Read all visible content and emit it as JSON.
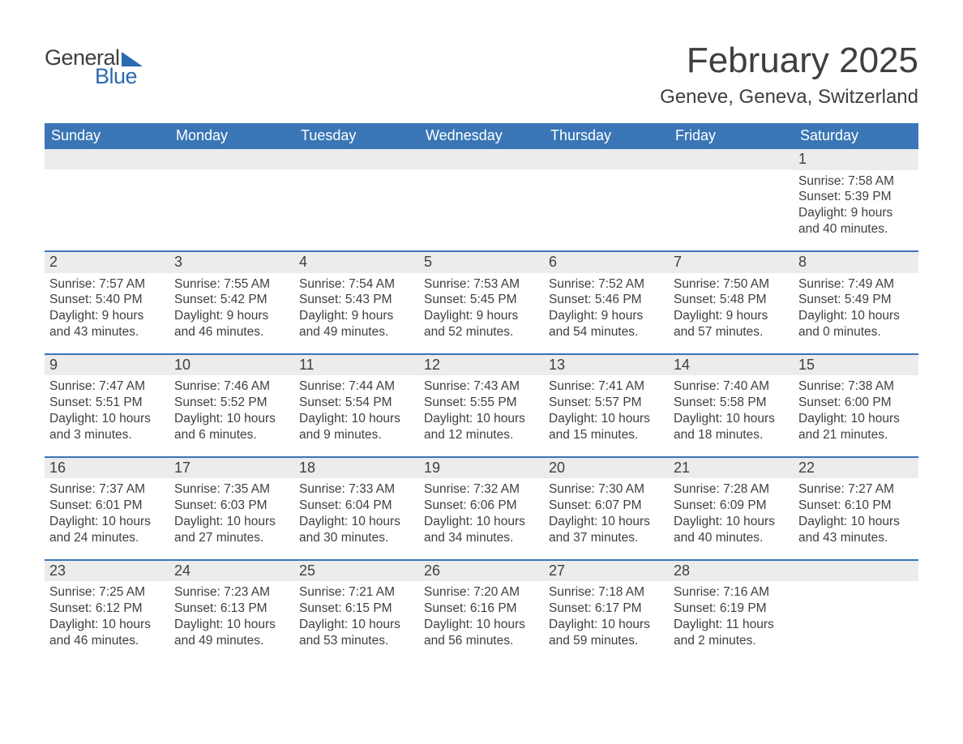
{
  "logo": {
    "word1": "General",
    "word2": "Blue"
  },
  "title": "February 2025",
  "location": "Geneve, Geneva, Switzerland",
  "header_bg": "#3a76b6",
  "row_bg": "#ececec",
  "text_color": "#3f3f3f",
  "accent_color": "#2b6bb0",
  "weekdays": [
    "Sunday",
    "Monday",
    "Tuesday",
    "Wednesday",
    "Thursday",
    "Friday",
    "Saturday"
  ],
  "weeks": [
    [
      null,
      null,
      null,
      null,
      null,
      null,
      {
        "n": "1",
        "sunrise": "Sunrise: 7:58 AM",
        "sunset": "Sunset: 5:39 PM",
        "day1": "Daylight: 9 hours",
        "day2": "and 40 minutes."
      }
    ],
    [
      {
        "n": "2",
        "sunrise": "Sunrise: 7:57 AM",
        "sunset": "Sunset: 5:40 PM",
        "day1": "Daylight: 9 hours",
        "day2": "and 43 minutes."
      },
      {
        "n": "3",
        "sunrise": "Sunrise: 7:55 AM",
        "sunset": "Sunset: 5:42 PM",
        "day1": "Daylight: 9 hours",
        "day2": "and 46 minutes."
      },
      {
        "n": "4",
        "sunrise": "Sunrise: 7:54 AM",
        "sunset": "Sunset: 5:43 PM",
        "day1": "Daylight: 9 hours",
        "day2": "and 49 minutes."
      },
      {
        "n": "5",
        "sunrise": "Sunrise: 7:53 AM",
        "sunset": "Sunset: 5:45 PM",
        "day1": "Daylight: 9 hours",
        "day2": "and 52 minutes."
      },
      {
        "n": "6",
        "sunrise": "Sunrise: 7:52 AM",
        "sunset": "Sunset: 5:46 PM",
        "day1": "Daylight: 9 hours",
        "day2": "and 54 minutes."
      },
      {
        "n": "7",
        "sunrise": "Sunrise: 7:50 AM",
        "sunset": "Sunset: 5:48 PM",
        "day1": "Daylight: 9 hours",
        "day2": "and 57 minutes."
      },
      {
        "n": "8",
        "sunrise": "Sunrise: 7:49 AM",
        "sunset": "Sunset: 5:49 PM",
        "day1": "Daylight: 10 hours",
        "day2": "and 0 minutes."
      }
    ],
    [
      {
        "n": "9",
        "sunrise": "Sunrise: 7:47 AM",
        "sunset": "Sunset: 5:51 PM",
        "day1": "Daylight: 10 hours",
        "day2": "and 3 minutes."
      },
      {
        "n": "10",
        "sunrise": "Sunrise: 7:46 AM",
        "sunset": "Sunset: 5:52 PM",
        "day1": "Daylight: 10 hours",
        "day2": "and 6 minutes."
      },
      {
        "n": "11",
        "sunrise": "Sunrise: 7:44 AM",
        "sunset": "Sunset: 5:54 PM",
        "day1": "Daylight: 10 hours",
        "day2": "and 9 minutes."
      },
      {
        "n": "12",
        "sunrise": "Sunrise: 7:43 AM",
        "sunset": "Sunset: 5:55 PM",
        "day1": "Daylight: 10 hours",
        "day2": "and 12 minutes."
      },
      {
        "n": "13",
        "sunrise": "Sunrise: 7:41 AM",
        "sunset": "Sunset: 5:57 PM",
        "day1": "Daylight: 10 hours",
        "day2": "and 15 minutes."
      },
      {
        "n": "14",
        "sunrise": "Sunrise: 7:40 AM",
        "sunset": "Sunset: 5:58 PM",
        "day1": "Daylight: 10 hours",
        "day2": "and 18 minutes."
      },
      {
        "n": "15",
        "sunrise": "Sunrise: 7:38 AM",
        "sunset": "Sunset: 6:00 PM",
        "day1": "Daylight: 10 hours",
        "day2": "and 21 minutes."
      }
    ],
    [
      {
        "n": "16",
        "sunrise": "Sunrise: 7:37 AM",
        "sunset": "Sunset: 6:01 PM",
        "day1": "Daylight: 10 hours",
        "day2": "and 24 minutes."
      },
      {
        "n": "17",
        "sunrise": "Sunrise: 7:35 AM",
        "sunset": "Sunset: 6:03 PM",
        "day1": "Daylight: 10 hours",
        "day2": "and 27 minutes."
      },
      {
        "n": "18",
        "sunrise": "Sunrise: 7:33 AM",
        "sunset": "Sunset: 6:04 PM",
        "day1": "Daylight: 10 hours",
        "day2": "and 30 minutes."
      },
      {
        "n": "19",
        "sunrise": "Sunrise: 7:32 AM",
        "sunset": "Sunset: 6:06 PM",
        "day1": "Daylight: 10 hours",
        "day2": "and 34 minutes."
      },
      {
        "n": "20",
        "sunrise": "Sunrise: 7:30 AM",
        "sunset": "Sunset: 6:07 PM",
        "day1": "Daylight: 10 hours",
        "day2": "and 37 minutes."
      },
      {
        "n": "21",
        "sunrise": "Sunrise: 7:28 AM",
        "sunset": "Sunset: 6:09 PM",
        "day1": "Daylight: 10 hours",
        "day2": "and 40 minutes."
      },
      {
        "n": "22",
        "sunrise": "Sunrise: 7:27 AM",
        "sunset": "Sunset: 6:10 PM",
        "day1": "Daylight: 10 hours",
        "day2": "and 43 minutes."
      }
    ],
    [
      {
        "n": "23",
        "sunrise": "Sunrise: 7:25 AM",
        "sunset": "Sunset: 6:12 PM",
        "day1": "Daylight: 10 hours",
        "day2": "and 46 minutes."
      },
      {
        "n": "24",
        "sunrise": "Sunrise: 7:23 AM",
        "sunset": "Sunset: 6:13 PM",
        "day1": "Daylight: 10 hours",
        "day2": "and 49 minutes."
      },
      {
        "n": "25",
        "sunrise": "Sunrise: 7:21 AM",
        "sunset": "Sunset: 6:15 PM",
        "day1": "Daylight: 10 hours",
        "day2": "and 53 minutes."
      },
      {
        "n": "26",
        "sunrise": "Sunrise: 7:20 AM",
        "sunset": "Sunset: 6:16 PM",
        "day1": "Daylight: 10 hours",
        "day2": "and 56 minutes."
      },
      {
        "n": "27",
        "sunrise": "Sunrise: 7:18 AM",
        "sunset": "Sunset: 6:17 PM",
        "day1": "Daylight: 10 hours",
        "day2": "and 59 minutes."
      },
      {
        "n": "28",
        "sunrise": "Sunrise: 7:16 AM",
        "sunset": "Sunset: 6:19 PM",
        "day1": "Daylight: 11 hours",
        "day2": "and 2 minutes."
      },
      null
    ]
  ]
}
